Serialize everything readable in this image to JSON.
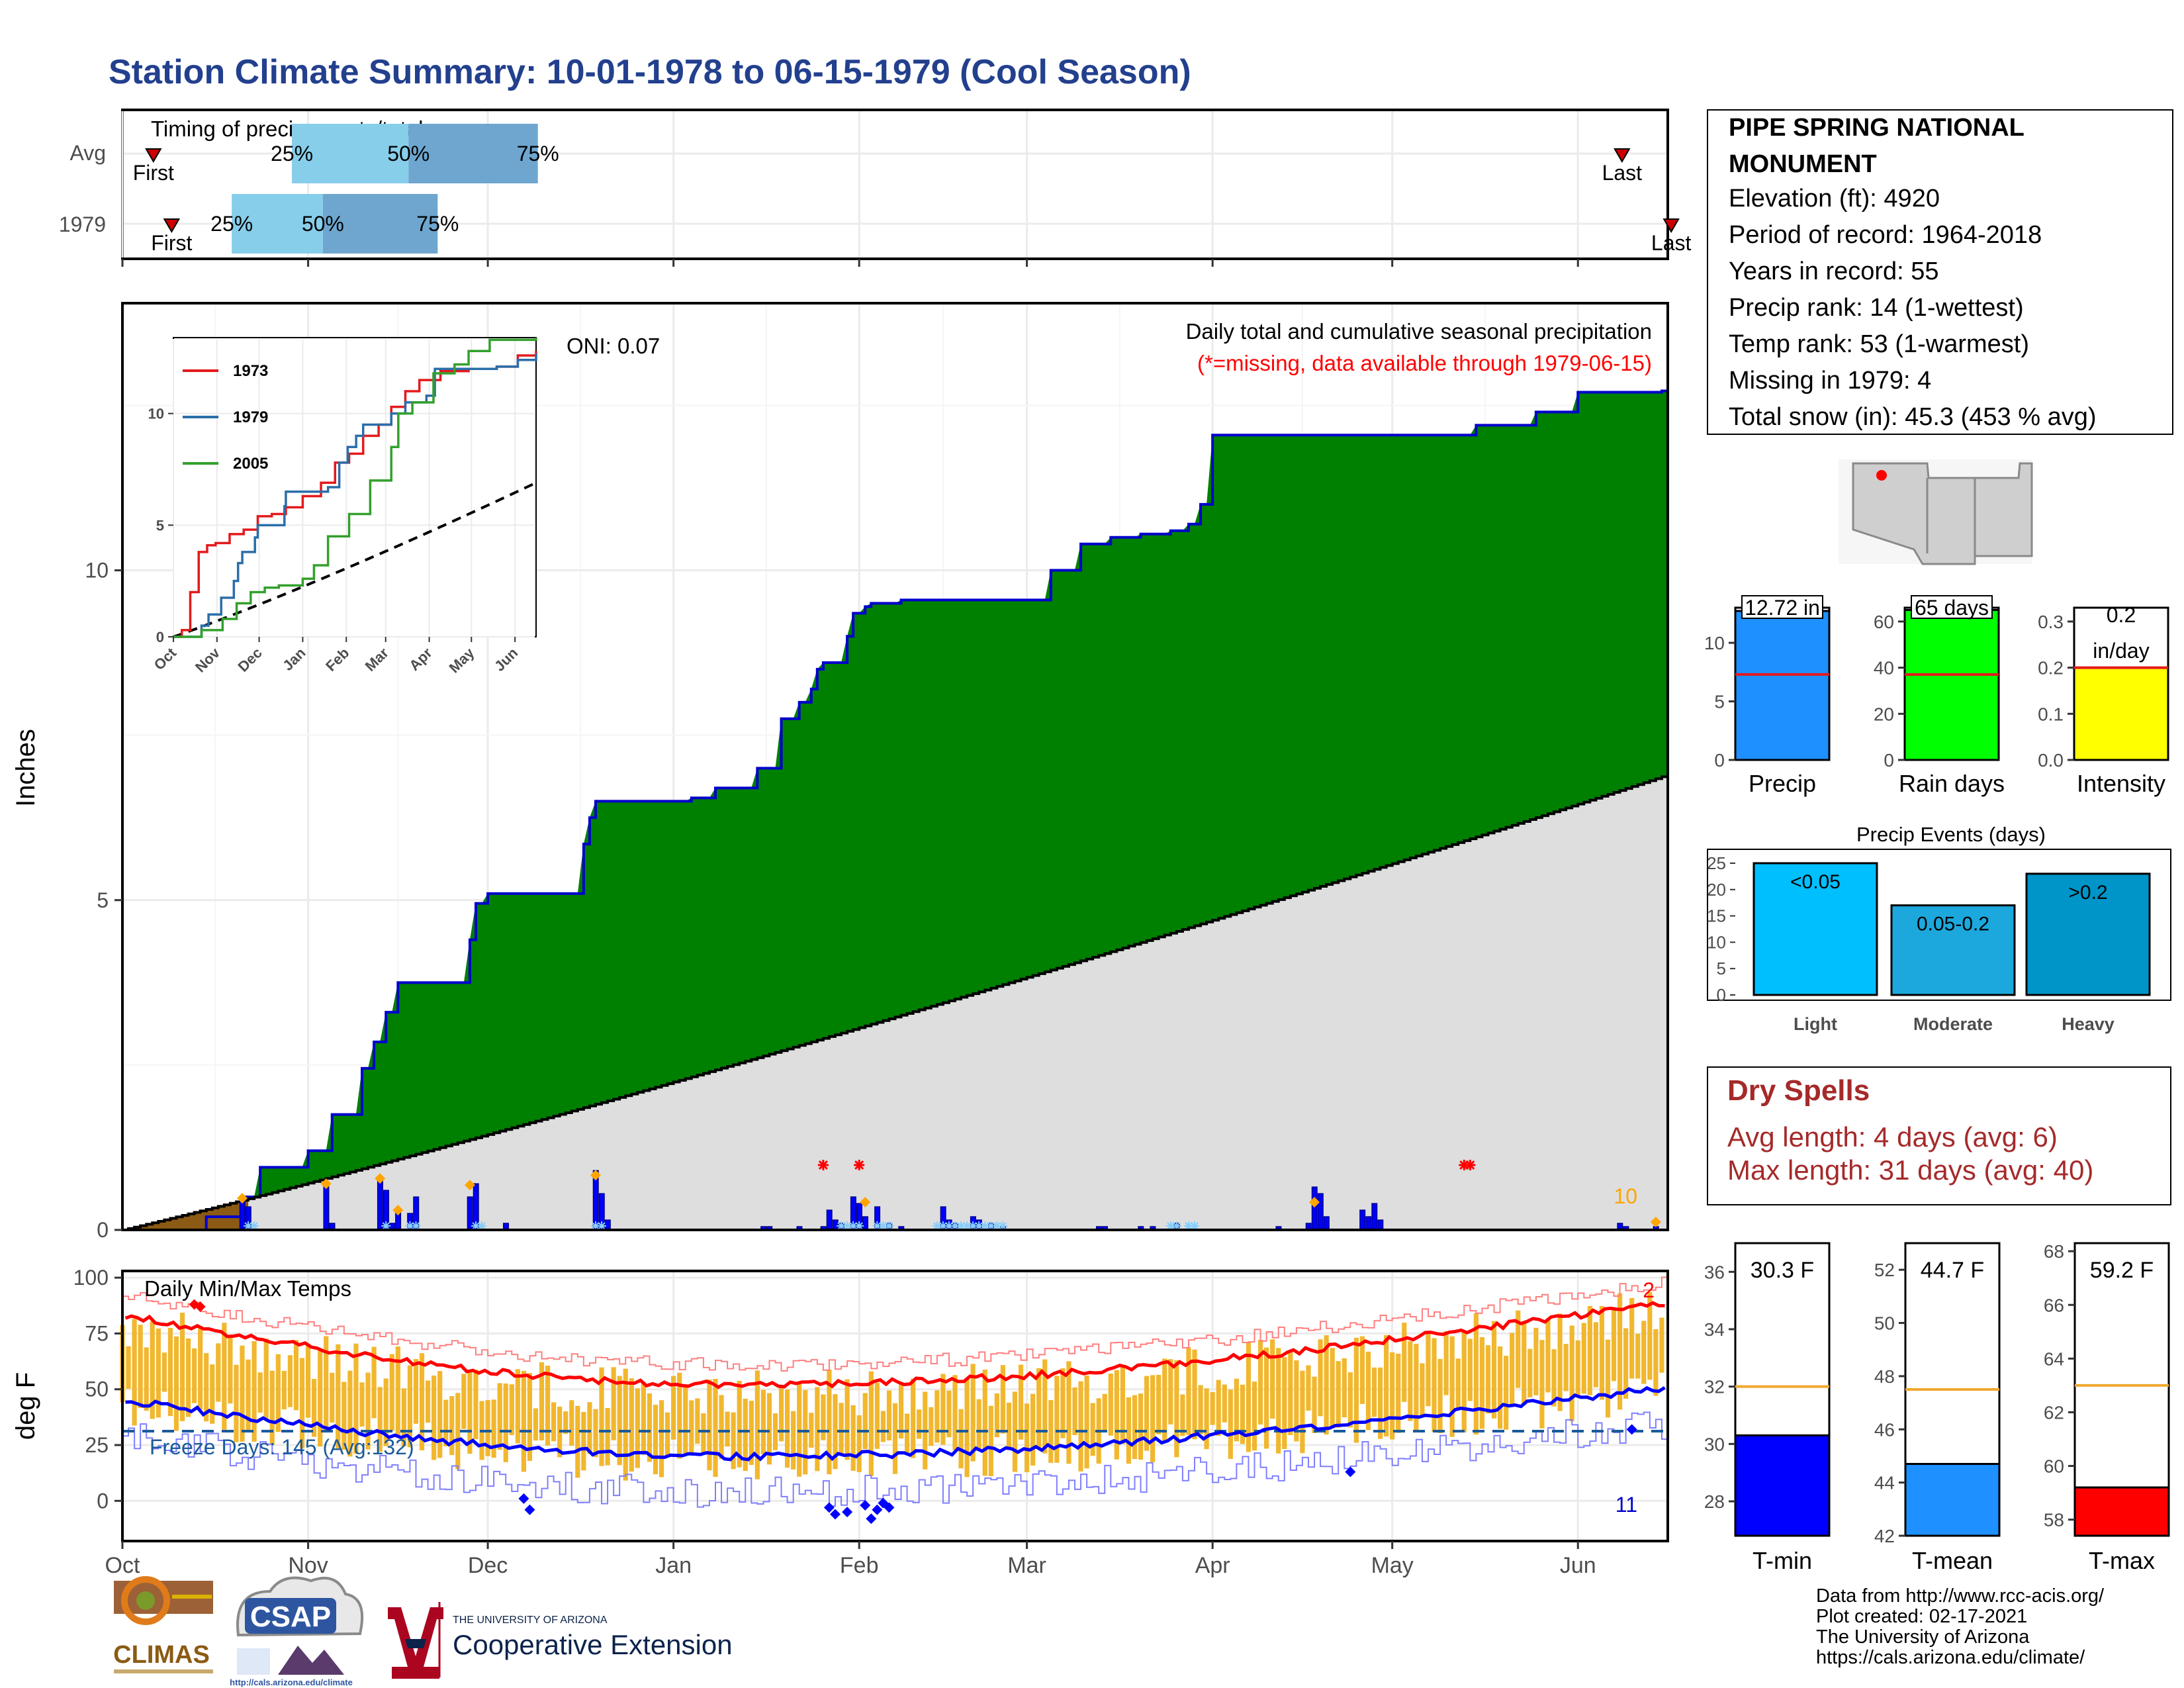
{
  "title": "Station Climate Summary: 10-01-1978 to 06-15-1979 (Cool Season)",
  "timing": {
    "caption": "Timing of precip events/totals",
    "rows": [
      {
        "label": "Avg",
        "first": 0.17,
        "p25": 0.93,
        "p50": 1.57,
        "p75": 2.28,
        "last": 8.23
      },
      {
        "label": "1979",
        "first": 0.27,
        "p25": 0.6,
        "p50": 1.1,
        "p75": 1.73,
        "last": 8.5
      }
    ],
    "first_label": "First",
    "last_label": "Last",
    "p25_label": "25%",
    "p50_label": "50%",
    "p75_label": "75%"
  },
  "station": {
    "name_line1": "PIPE SPRING NATIONAL",
    "name_line2": "MONUMENT",
    "elevation": "Elevation (ft): 4920",
    "period": "Period of record: 1964-2018",
    "years": "Years in record: 55",
    "precip_rank": "Precip rank: 14 (1-wettest)",
    "temp_rank": "Temp rank: 53 (1-warmest)",
    "missing": "Missing in 1979: 4",
    "snow": "Total snow (in): 45.3 (453 % avg)"
  },
  "main_chart": {
    "ylabel": "Inches",
    "title": "Daily total and cumulative seasonal precipitation",
    "subtitle": "(*=missing, data available through 1979-06-15)",
    "oni": "ONI: 0.07",
    "count_label": "10",
    "yticks": [
      "0",
      "5",
      "10"
    ]
  },
  "months": [
    "Oct",
    "Nov",
    "Dec",
    "Jan",
    "Feb",
    "Mar",
    "Apr",
    "May",
    "Jun"
  ],
  "inset": {
    "series": [
      {
        "name": "1973",
        "color": "#e31a1c"
      },
      {
        "name": "1979",
        "color": "#2b6ea8"
      },
      {
        "name": "2005",
        "color": "#33a02c"
      }
    ],
    "yticks": [
      "0",
      "5",
      "10"
    ],
    "months": [
      "Oct",
      "Nov",
      "Dec",
      "Jan",
      "Feb",
      "Mar",
      "Apr",
      "May",
      "Jun"
    ]
  },
  "temp_chart": {
    "ylabel": "deg F",
    "title": "Daily Min/Max Temps",
    "freeze": "Freeze Days: 145 (Avg:132)",
    "count_high": "2",
    "count_low": "11",
    "yticks": [
      "0",
      "25",
      "50",
      "75",
      "100"
    ]
  },
  "bars": {
    "precip": {
      "value": 12.72,
      "avg": 7.3,
      "label": "12.72 in",
      "name": "Precip",
      "ticks": [
        "0",
        "5",
        "10"
      ],
      "color": "#1e90ff"
    },
    "rain_days": {
      "value": 65,
      "avg": 37,
      "label": "65 days",
      "name": "Rain days",
      "ticks": [
        "0",
        "20",
        "40",
        "60"
      ],
      "color": "#00ff00"
    },
    "intensity": {
      "value": 0.2,
      "avg": 0.2,
      "label1": "0.2",
      "label2": "in/day",
      "name": "Intensity",
      "ticks": [
        "0.0",
        "0.1",
        "0.2",
        "0.3"
      ],
      "color": "#ffff00"
    }
  },
  "events": {
    "title": "Precip Events (days)",
    "categories": [
      "Light",
      "Moderate",
      "Heavy"
    ],
    "values": [
      25,
      17,
      23
    ],
    "labels": [
      "<0.05",
      "0.05-0.2",
      ">0.2"
    ],
    "colors": [
      "#00bfff",
      "#1ca8dd",
      "#0095c8"
    ],
    "ticks": [
      "0",
      "5",
      "10",
      "15",
      "20",
      "25"
    ]
  },
  "dry_spells": {
    "title": "Dry Spells",
    "avg": "Avg length: 4 days (avg: 6)",
    "max": "Max length: 31 days (avg: 40)"
  },
  "temp_bars": {
    "tmin": {
      "value": 30.3,
      "avg": 32,
      "label": "30.3 F",
      "name": "T-min",
      "ticks": [
        "28",
        "30",
        "32",
        "34",
        "36"
      ],
      "color": "#0000ff"
    },
    "tmean": {
      "value": 44.7,
      "avg": 47.5,
      "label": "44.7 F",
      "name": "T-mean",
      "ticks": [
        "42",
        "44",
        "46",
        "48",
        "50",
        "52"
      ],
      "color": "#1e90ff"
    },
    "tmax": {
      "value": 59.2,
      "avg": 63,
      "label": "59.2 F",
      "name": "T-max",
      "ticks": [
        "58",
        "60",
        "62",
        "64",
        "66",
        "68"
      ],
      "color": "#ff0000"
    }
  },
  "footer": {
    "line1": "Data from http://www.rcc-acis.org/",
    "line2": "Plot created: 02-17-2021",
    "line3": "The University of Arizona",
    "line4": "https://cals.arizona.edu/climate/",
    "logo1": "CLIMAS",
    "logo2": "CSAP",
    "logo2_url": "http://cals.arizona.edu/climate",
    "ua_small": "THE UNIVERSITY OF ARIZONA",
    "ua_big": "Cooperative Extension"
  },
  "chart_data": {
    "type": "area",
    "x_axis": "date (Oct 1978 - Jun 1979)",
    "cumulative_1979": {
      "x": [
        "10-01",
        "10-15",
        "10-21",
        "10-24",
        "11-01",
        "11-05",
        "11-10",
        "11-12",
        "11-14",
        "11-16",
        "11-28",
        "11-29",
        "12-01",
        "12-02",
        "12-05",
        "12-10",
        "12-17",
        "12-18",
        "12-19",
        "12-23",
        "01-01",
        "01-04",
        "01-08",
        "01-12",
        "01-15",
        "01-19",
        "01-22",
        "01-24",
        "01-25",
        "01-26",
        "01-29",
        "01-30",
        "01-31",
        "02-02",
        "02-03",
        "02-08",
        "02-15",
        "02-20",
        "03-05",
        "03-10",
        "03-15",
        "03-20",
        "03-25",
        "03-28",
        "03-30",
        "04-01",
        "04-15",
        "05-01",
        "05-15",
        "05-25",
        "06-01",
        "06-15"
      ],
      "y": [
        0,
        0.2,
        0.5,
        0.95,
        1.2,
        1.75,
        2.45,
        2.85,
        3.3,
        3.75,
        4.4,
        4.95,
        5.1,
        5.1,
        5.1,
        5.1,
        5.85,
        6.25,
        6.5,
        6.5,
        6.5,
        6.55,
        6.7,
        6.7,
        7.0,
        7.75,
        8.0,
        8.2,
        8.5,
        8.6,
        8.6,
        9.0,
        9.35,
        9.45,
        9.5,
        9.55,
        9.55,
        9.55,
        10.0,
        10.4,
        10.5,
        10.55,
        10.6,
        10.7,
        11.0,
        12.05,
        12.05,
        12.05,
        12.2,
        12.4,
        12.7,
        12.72
      ]
    },
    "cumulative_avg_end": 6.9,
    "temps_avg_max_start": 83,
    "temps_avg_max_min": 52,
    "temps_avg_max_end": 89,
    "temps_avg_min_start": 45,
    "temps_avg_min_min": 20,
    "temps_avg_min_end": 51,
    "freeze_line": 32
  }
}
